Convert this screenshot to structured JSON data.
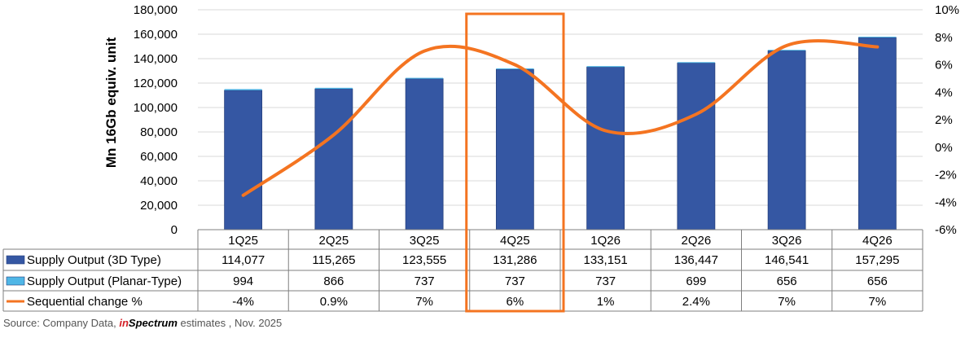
{
  "chart_data": {
    "type": "bar",
    "categories": [
      "1Q25",
      "2Q25",
      "3Q25",
      "4Q25",
      "1Q26",
      "2Q26",
      "3Q26",
      "4Q26"
    ],
    "ylabel": "Mn 16Gb equiv. unit",
    "ylim": [
      0,
      180000
    ],
    "y_ticks": [
      "180,000",
      "160,000",
      "140,000",
      "120,000",
      "100,000",
      "80,000",
      "60,000",
      "40,000",
      "20,000",
      "0"
    ],
    "y2lim": [
      -6,
      10
    ],
    "y2_ticks": [
      "10%",
      "8%",
      "6%",
      "4%",
      "2%",
      "0%",
      "-2%",
      "-4%",
      "-6%"
    ],
    "grid": true,
    "highlighted_category": "4Q25",
    "series": [
      {
        "name": "Supply Output (3D Type)",
        "kind": "bar",
        "color": "#3557a3",
        "values": [
          114077,
          115265,
          123555,
          131286,
          133151,
          136447,
          146541,
          157295
        ],
        "labels": [
          "114,077",
          "115,265",
          "123,555",
          "131,286",
          "133,151",
          "136,447",
          "146,541",
          "157,295"
        ]
      },
      {
        "name": "Supply Output (Planar-Type)",
        "kind": "bar",
        "color": "#4fb6e6",
        "values": [
          994,
          866,
          737,
          737,
          737,
          699,
          656,
          656
        ],
        "labels": [
          "994",
          "866",
          "737",
          "737",
          "737",
          "699",
          "656",
          "656"
        ]
      },
      {
        "name": "Sequential change %",
        "kind": "line",
        "axis": "secondary",
        "color": "#f47421",
        "values": [
          -3.5,
          0.9,
          7,
          6,
          1.2,
          2.4,
          7.4,
          7.3
        ],
        "labels": [
          "-4%",
          "0.9%",
          "7%",
          "6%",
          "1%",
          "2.4%",
          "7%",
          "7%"
        ]
      }
    ],
    "highlight_color": "#f47421"
  },
  "source": {
    "prefix": "Source: Company Data, ",
    "brand_in": "in",
    "brand_rest": "Spectrum",
    "suffix": " estimates , Nov. 2025"
  }
}
